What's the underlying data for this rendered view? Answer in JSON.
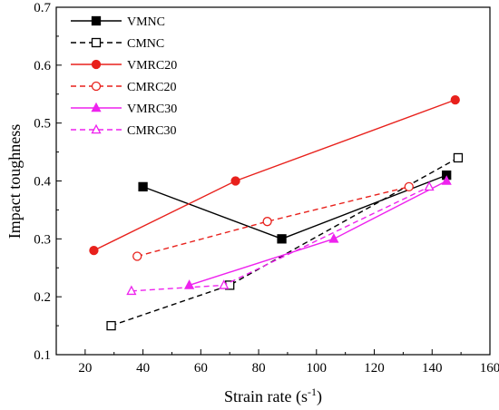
{
  "chart_data": {
    "type": "line",
    "xlabel": "Strain rate (s",
    "xlabel_sup": "-1",
    "xlabel_close": ")",
    "ylabel": "Impact toughness",
    "xlim": [
      10,
      160
    ],
    "ylim": [
      0.1,
      0.7
    ],
    "x_ticks": [
      "20",
      "40",
      "60",
      "80",
      "100",
      "120",
      "140",
      "160"
    ],
    "y_ticks": [
      "0.1",
      "0.2",
      "0.3",
      "0.4",
      "0.5",
      "0.6",
      "0.7"
    ],
    "legend_position": "top-left",
    "series": [
      {
        "name": "VMNC",
        "color": "#000000",
        "dash": "solid",
        "marker": "square",
        "filled": true,
        "x": [
          40,
          88,
          145
        ],
        "y": [
          0.39,
          0.3,
          0.41
        ]
      },
      {
        "name": "CMNC",
        "color": "#000000",
        "dash": "dashed",
        "marker": "square",
        "filled": false,
        "x": [
          29,
          70,
          149
        ],
        "y": [
          0.15,
          0.22,
          0.44
        ]
      },
      {
        "name": "VMRC20",
        "color": "#e8211c",
        "dash": "solid",
        "marker": "circle",
        "filled": true,
        "x": [
          23,
          72,
          148
        ],
        "y": [
          0.28,
          0.4,
          0.54
        ]
      },
      {
        "name": "CMRC20",
        "color": "#e8211c",
        "dash": "dashed",
        "marker": "circle",
        "filled": false,
        "x": [
          38,
          83,
          132
        ],
        "y": [
          0.27,
          0.33,
          0.39
        ]
      },
      {
        "name": "VMRC30",
        "color": "#ee22ee",
        "dash": "solid",
        "marker": "triangle",
        "filled": true,
        "x": [
          56,
          106,
          145
        ],
        "y": [
          0.22,
          0.3,
          0.4
        ]
      },
      {
        "name": "CMRC30",
        "color": "#ee22ee",
        "dash": "dashed",
        "marker": "triangle",
        "filled": false,
        "x": [
          36,
          68,
          139
        ],
        "y": [
          0.21,
          0.22,
          0.39
        ]
      }
    ]
  }
}
